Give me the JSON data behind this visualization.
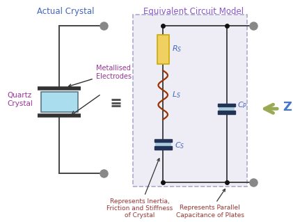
{
  "title_actual": "Actual Crystal",
  "title_equiv": "Equivalent Circuit Model",
  "title_actual_color": "#4466bb",
  "title_equiv_color": "#8855cc",
  "bg_color": "#ffffff",
  "box_fill": "#eeecf5",
  "box_edge": "#aaaacc",
  "crystal_fill": "#aaddee",
  "rs_fill": "#f0d060",
  "rs_edge": "#ccaa00",
  "inductor_color": "#993300",
  "cap_plate_color": "#223355",
  "cap_fill_color": "#aaccdd",
  "wire_color": "#444444",
  "dot_color": "#888888",
  "node_dot_color": "#111111",
  "label_color": "#4466bb",
  "label_z": "Z",
  "label_z_color": "#4477cc",
  "arrow_z_color": "#99aa55",
  "quartz_label": "Quartz\nCrystal",
  "quartz_color": "#993399",
  "metallised_label": "Metallised\nElectrodes",
  "metallised_color": "#993399",
  "annotation1": "Represents Inertia,\nFriction and Stiffness\nof Crystal",
  "annotation2": "Represents Parallel\nCapacitance of Plates",
  "annotation_color": "#993333",
  "equiv_symbol_color": "#555555"
}
